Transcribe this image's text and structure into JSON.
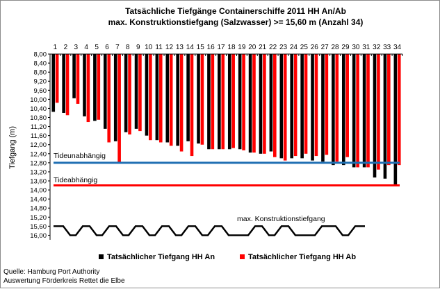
{
  "chart_data": {
    "type": "bar",
    "title": "Tatsächliche Tiefgänge Containerschiffe  2011 HH An/Ab",
    "subtitle": "max. Konstruktionstiefgang  (Salzwasser)  >= 15,60 m (Anzahl 34)",
    "ylabel": "Tiefgang (m)",
    "ylim": [
      8.0,
      16.2
    ],
    "y_inverted": true,
    "y_ticks": [
      "8,00",
      "8,40",
      "8,80",
      "9,20",
      "9,60",
      "10,00",
      "10,40",
      "10,80",
      "11,20",
      "11,60",
      "12,00",
      "12,40",
      "12,80",
      "13,20",
      "13,60",
      "14,00",
      "14,40",
      "14,80",
      "15,20",
      "15,60",
      "16,00"
    ],
    "categories": [
      "1",
      "2",
      "3",
      "4",
      "5",
      "6",
      "7",
      "8",
      "9",
      "10",
      "11",
      "12",
      "13",
      "14",
      "15",
      "16",
      "17",
      "18",
      "19",
      "20",
      "21",
      "22",
      "23",
      "24",
      "25",
      "26",
      "27",
      "28",
      "29",
      "30",
      "31",
      "32",
      "33",
      "34"
    ],
    "series": [
      {
        "name": "Tatsächlicher Tiefgang HH An",
        "color": "#000000",
        "values": [
          10.55,
          10.6,
          9.95,
          10.75,
          10.95,
          11.3,
          11.85,
          11.45,
          11.3,
          11.6,
          11.8,
          11.9,
          12.05,
          11.85,
          11.95,
          12.2,
          12.2,
          12.2,
          12.2,
          12.35,
          12.4,
          12.3,
          12.6,
          12.6,
          12.6,
          12.7,
          12.75,
          12.9,
          12.9,
          13.0,
          13.0,
          13.45,
          13.5,
          13.8
        ]
      },
      {
        "name": "Tatsächlicher Tiefgang HH Ab",
        "color": "#ff0000",
        "values": [
          10.15,
          10.7,
          10.2,
          11.0,
          10.9,
          11.9,
          12.8,
          11.55,
          11.4,
          11.8,
          11.9,
          12.05,
          12.3,
          12.5,
          12.0,
          12.2,
          12.2,
          12.15,
          12.25,
          12.35,
          12.4,
          12.55,
          12.7,
          12.5,
          12.4,
          12.5,
          12.45,
          12.75,
          12.55,
          13.0,
          13.0,
          13.1,
          12.9,
          12.9
        ]
      }
    ],
    "annotations": {
      "tideunabhaengig": {
        "label": "Tideunabhängig",
        "value": 12.8,
        "color": "#1f6fb2"
      },
      "tideabhaengig": {
        "label": "Tideabhängig",
        "value": 13.8,
        "color": "#ff0000"
      },
      "konstruktion": {
        "label": "max. Konstruktionstiefgang",
        "value_low": 15.6,
        "value_high": 16.0
      }
    },
    "legend_position": "bottom",
    "grid": false
  },
  "footer": {
    "source_line1": "Quelle: Hamburg Port Authority",
    "source_line2": "Auswertung Förderkreis Rettet die Elbe"
  }
}
